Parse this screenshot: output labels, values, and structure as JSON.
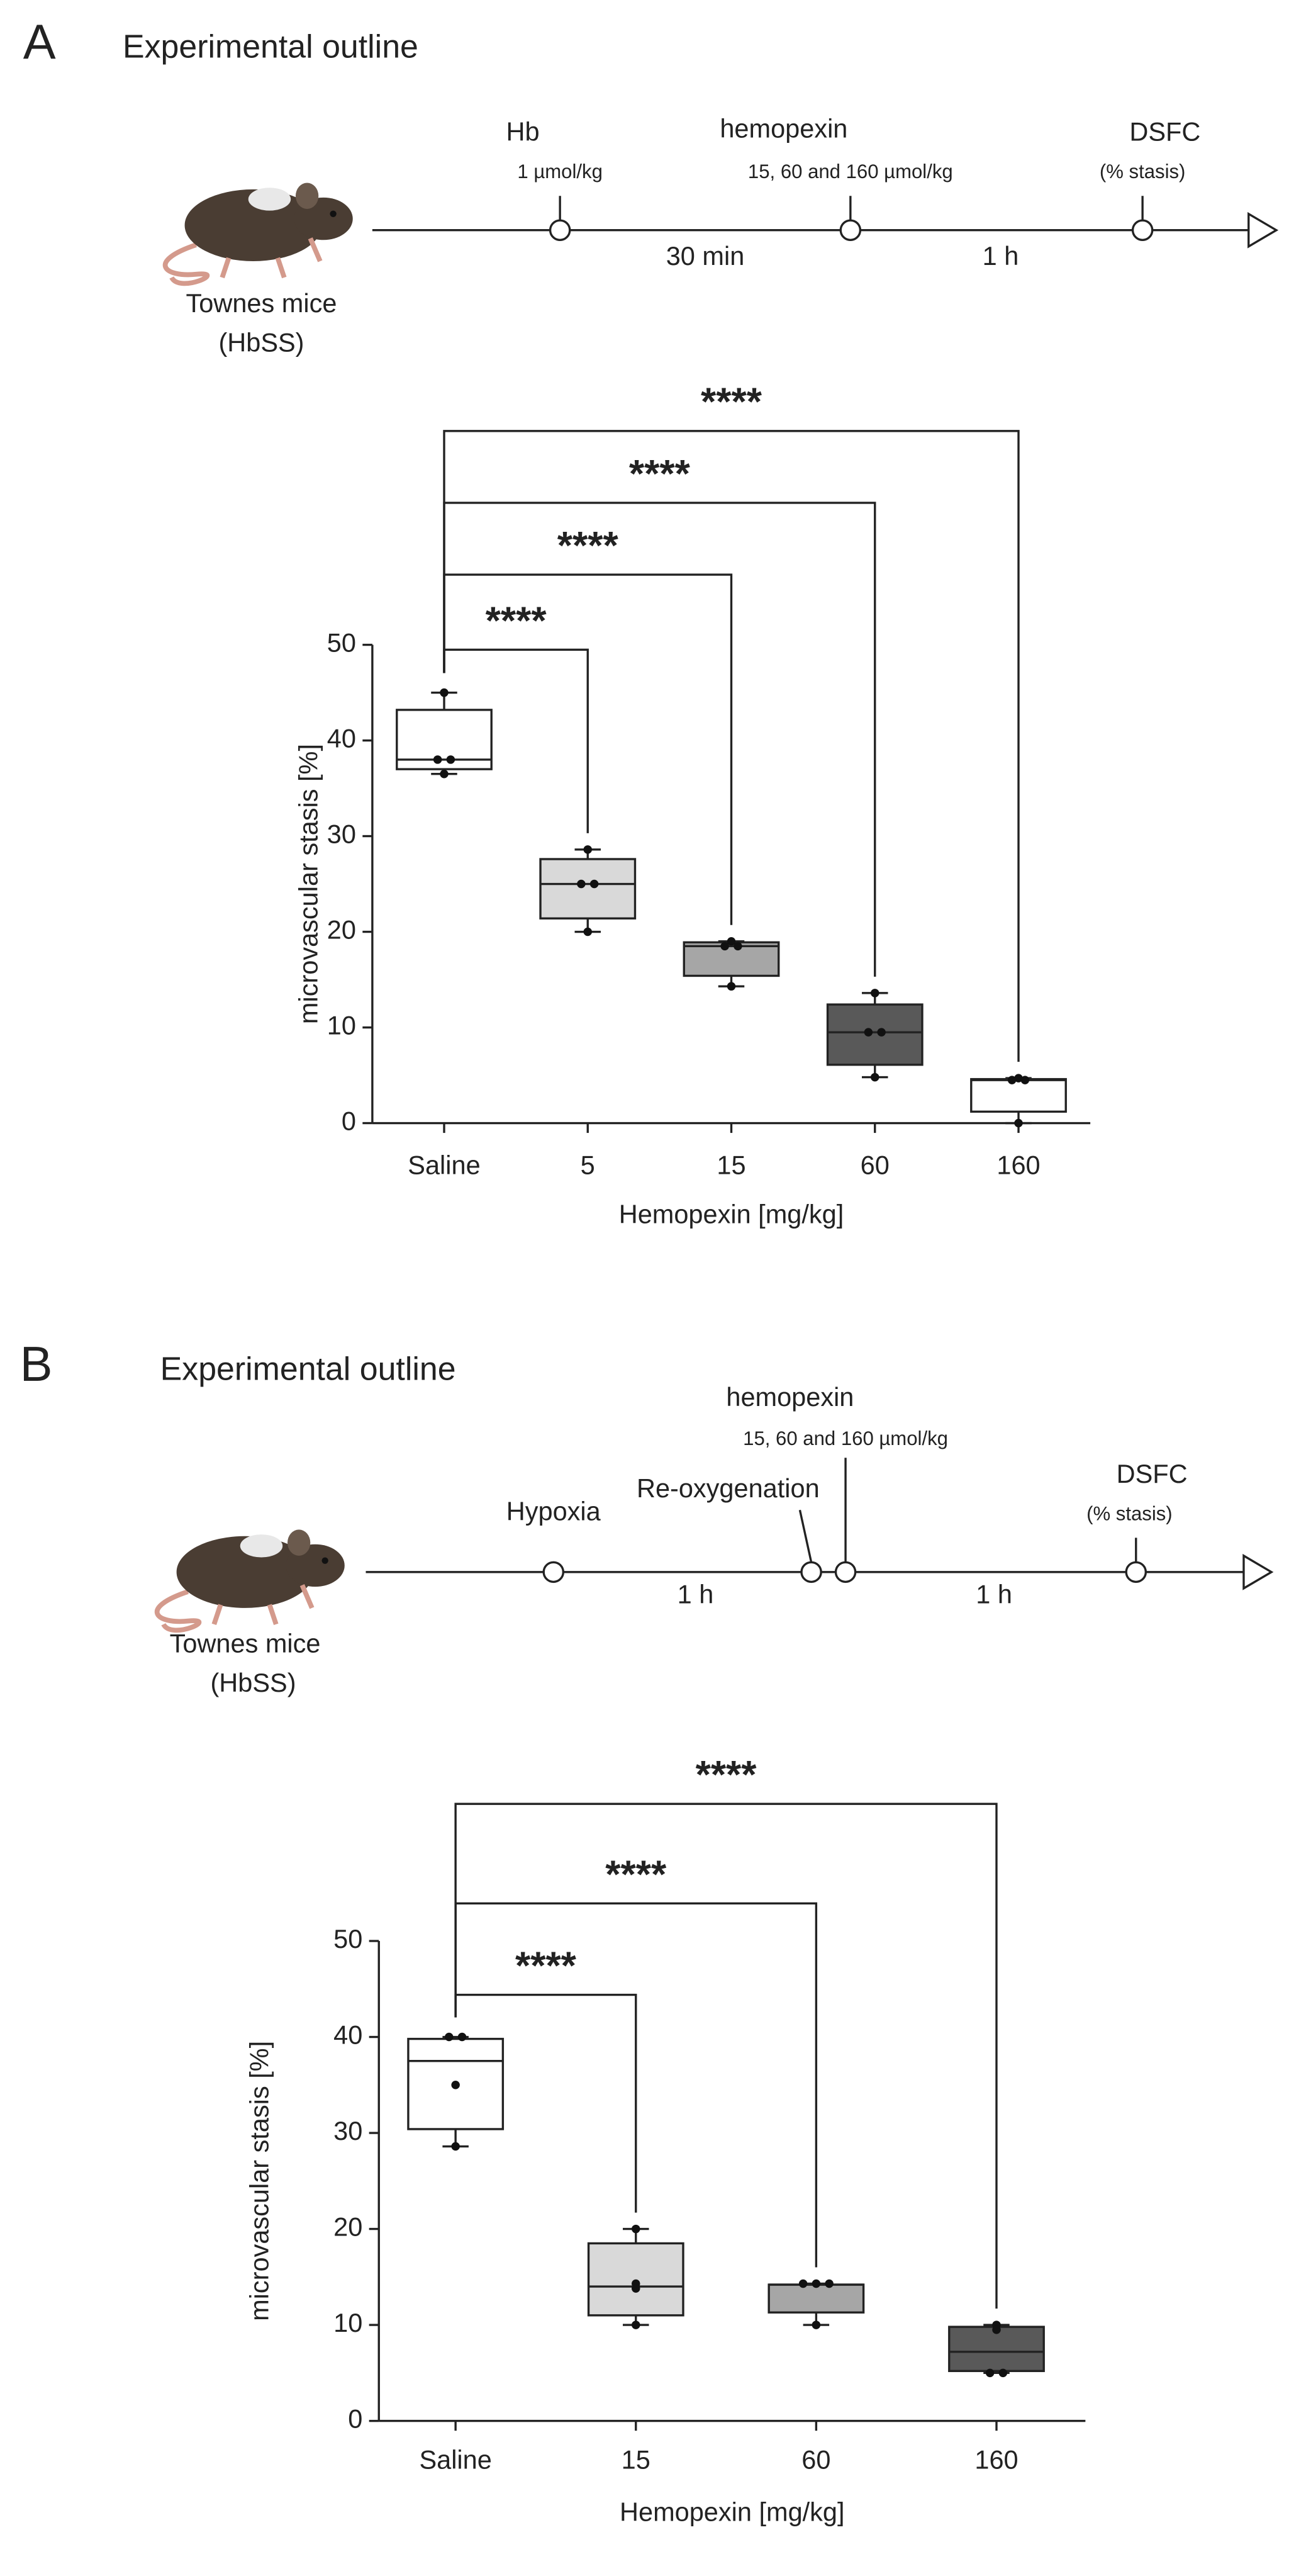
{
  "chart_data": [
    {
      "type": "box",
      "panel": "A",
      "ylabel": "microvascular stasis [%]",
      "xlabel": "Hemopexin [mg/kg]",
      "categories": [
        "Saline",
        "5",
        "15",
        "60",
        "160"
      ],
      "colors": [
        "#ffffff",
        "#d9d9d9",
        "#a6a6a6",
        "#595959",
        "#ffffff"
      ],
      "boxes": [
        {
          "min": 36.5,
          "q1": 37,
          "median": 38,
          "q3": 43.2,
          "max": 45,
          "points": [
            45,
            38,
            38,
            36.5
          ]
        },
        {
          "min": 20,
          "q1": 21.4,
          "median": 25,
          "q3": 27.6,
          "max": 28.6,
          "points": [
            28.6,
            25,
            25,
            20
          ]
        },
        {
          "min": 14.3,
          "q1": 15.4,
          "median": 18.5,
          "q3": 18.9,
          "max": 19,
          "points": [
            19,
            18.5,
            18.5,
            14.3
          ]
        },
        {
          "min": 4.8,
          "q1": 6.1,
          "median": 9.5,
          "q3": 12.4,
          "max": 13.6,
          "points": [
            13.6,
            9.5,
            9.5,
            4.8
          ]
        },
        {
          "min": 0,
          "q1": 1.2,
          "median": 4.5,
          "q3": 4.6,
          "max": 4.7,
          "points": [
            4.7,
            4.5,
            4.5,
            0
          ]
        }
      ],
      "ylim": [
        0,
        50
      ],
      "yticks": [
        0,
        10,
        20,
        30,
        40,
        50
      ],
      "comparisons": [
        {
          "from": 0,
          "to": 1,
          "label": "****"
        },
        {
          "from": 0,
          "to": 2,
          "label": "****"
        },
        {
          "from": 0,
          "to": 3,
          "label": "****"
        },
        {
          "from": 0,
          "to": 4,
          "label": "****"
        }
      ]
    },
    {
      "type": "box",
      "panel": "B",
      "ylabel": "microvascular stasis [%]",
      "xlabel": "Hemopexin [mg/kg]",
      "categories": [
        "Saline",
        "15",
        "60",
        "160"
      ],
      "colors": [
        "#ffffff",
        "#d9d9d9",
        "#a6a6a6",
        "#595959"
      ],
      "boxes": [
        {
          "min": 28.6,
          "q1": 30.4,
          "median": 37.5,
          "q3": 39.8,
          "max": 40,
          "points": [
            40,
            40,
            35,
            28.6
          ]
        },
        {
          "min": 10,
          "q1": 11,
          "median": 14,
          "q3": 18.5,
          "max": 20,
          "points": [
            20,
            14.3,
            13.8,
            10
          ]
        },
        {
          "min": 10,
          "q1": 11.3,
          "median": 14.2,
          "q3": 14.2,
          "max": 14.3,
          "points": [
            14.3,
            14.3,
            14.3,
            10
          ]
        },
        {
          "min": 5,
          "q1": 5.2,
          "median": 7.2,
          "q3": 9.8,
          "max": 10,
          "points": [
            10,
            9.5,
            5,
            5
          ]
        }
      ],
      "ylim": [
        0,
        50
      ],
      "yticks": [
        0,
        10,
        20,
        30,
        40,
        50
      ],
      "comparisons": [
        {
          "from": 0,
          "to": 1,
          "label": "****"
        },
        {
          "from": 0,
          "to": 2,
          "label": "****"
        },
        {
          "from": 0,
          "to": 3,
          "label": "****"
        }
      ]
    }
  ],
  "outlines": [
    {
      "title": "Experimental outline",
      "events": [
        {
          "label": "Hb",
          "sublabel": "1 µmol/kg"
        },
        {
          "label": "hemopexin",
          "sublabel": "15, 60 and 160  µmol/kg"
        },
        {
          "label": "DSFC",
          "sublabel": "(% stasis)"
        }
      ],
      "intervals": [
        "30 min",
        "1 h"
      ],
      "subject": [
        "Townes mice",
        "(HbSS)"
      ]
    },
    {
      "title": "Experimental outline",
      "events": [
        {
          "label": "Hypoxia"
        },
        {
          "label": "Re-oxygenation"
        },
        {
          "label": "hemopexin",
          "sublabel": "15, 60 and 160  µmol/kg"
        },
        {
          "label": "DSFC",
          "sublabel": "(% stasis)"
        }
      ],
      "intervals": [
        "1 h",
        "1 h"
      ],
      "subject": [
        "Townes mice",
        "(HbSS)"
      ]
    }
  ]
}
